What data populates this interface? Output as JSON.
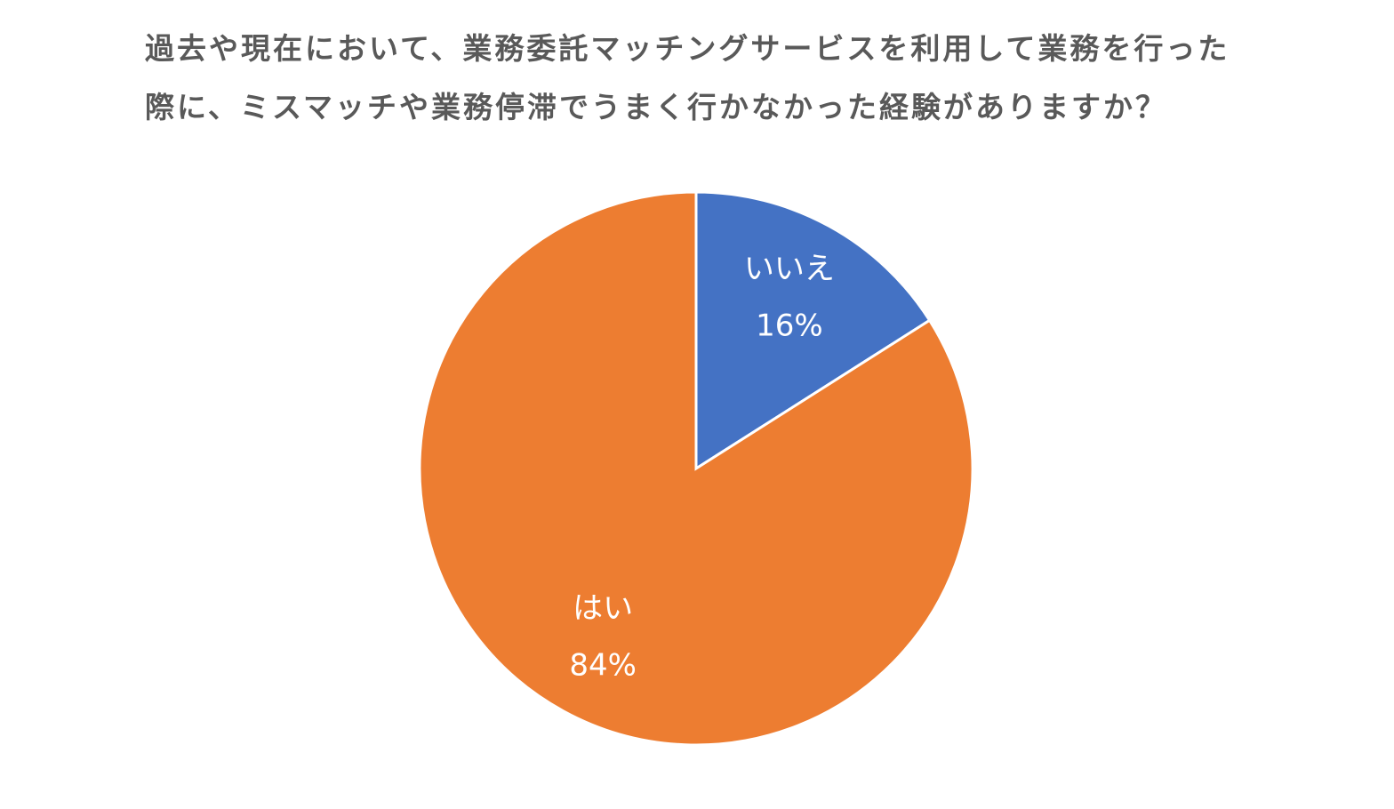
{
  "chart_data": {
    "type": "pie",
    "title": "過去や現在において、業務委託マッチングサービスを利用して業務を行った際に、ミスマッチや業務停滞でうまく行かなかった経験がありますか？",
    "categories": [
      "いいえ",
      "はい"
    ],
    "values": [
      16,
      84
    ],
    "value_labels": [
      "16%",
      "84%"
    ],
    "colors": [
      "#4472c4",
      "#ed7d31"
    ]
  }
}
